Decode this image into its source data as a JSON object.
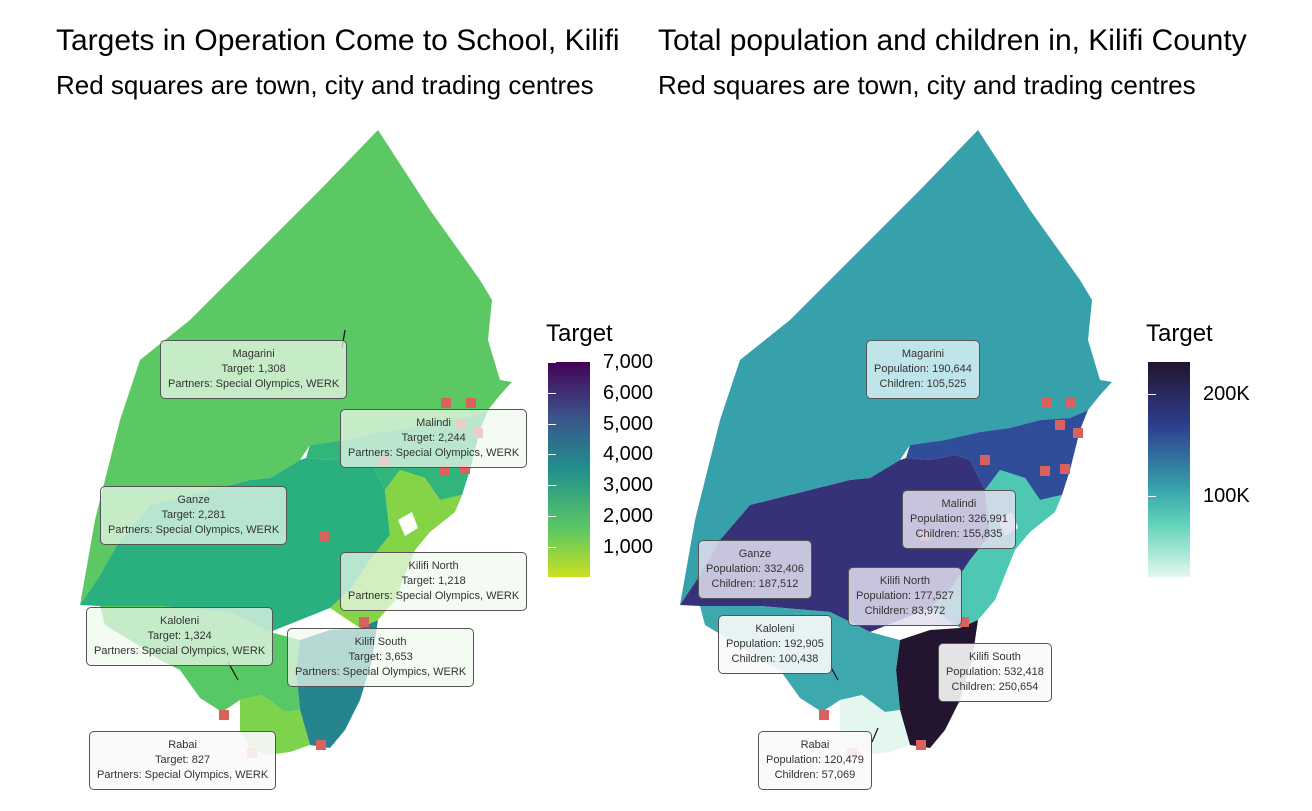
{
  "left": {
    "title": "Targets in Operation Come to School, Kilifi",
    "subtitle": "Red squares are town, city and trading centres",
    "legend_title": "Target",
    "legend_ticks": [
      "7,000",
      "6,000",
      "5,000",
      "4,000",
      "3,000",
      "2,000",
      "1,000"
    ],
    "labels": [
      {
        "name": "Magarini",
        "line1": "Target: 1,308",
        "line2": "Partners: Special Olympics, WERK"
      },
      {
        "name": "Malindi",
        "line1": "Target: 2,244",
        "line2": "Partners: Special Olympics, WERK"
      },
      {
        "name": "Ganze",
        "line1": "Target: 2,281",
        "line2": "Partners: Special Olympics, WERK"
      },
      {
        "name": "Kilifi North",
        "line1": "Target: 1,218",
        "line2": "Partners: Special Olympics, WERK"
      },
      {
        "name": "Kaloleni",
        "line1": "Target: 1,324",
        "line2": "Partners: Special Olympics, WERK"
      },
      {
        "name": "Kilifi South",
        "line1": "Target: 3,653",
        "line2": "Partners: Special Olympics, WERK"
      },
      {
        "name": "Rabai",
        "line1": "Target: 827",
        "line2": "Partners: Special Olympics, WERK"
      }
    ]
  },
  "right": {
    "title": "Total population and children in, Kilifi County",
    "subtitle": "Red squares are town, city and trading centres",
    "legend_title": "Target",
    "legend_ticks": [
      "200K",
      "100K"
    ],
    "labels": [
      {
        "name": "Magarini",
        "line1": "Population: 190,644",
        "line2": "Children: 105,525"
      },
      {
        "name": "Malindi",
        "line1": "Population: 326,991",
        "line2": "Children: 155,835"
      },
      {
        "name": "Ganze",
        "line1": "Population: 332,406",
        "line2": "Children: 187,512"
      },
      {
        "name": "Kilifi North",
        "line1": "Population: 177,527",
        "line2": "Children: 83,972"
      },
      {
        "name": "Kaloleni",
        "line1": "Population: 192,905",
        "line2": "Children: 100,438"
      },
      {
        "name": "Kilifi South",
        "line1": "Population: 532,418",
        "line2": "Children: 250,654"
      },
      {
        "name": "Rabai",
        "line1": "Population: 120,479",
        "line2": "Children: 57,069"
      }
    ]
  },
  "colors": {
    "left_scale": [
      "#440154",
      "#3b528b",
      "#21908d",
      "#5dc863",
      "#c9e020"
    ],
    "right_scale": [
      "#23142f",
      "#2e3f8f",
      "#36a0ab",
      "#5fd2b9",
      "#e3f7ee"
    ],
    "town_marker": "#d9625e"
  }
}
